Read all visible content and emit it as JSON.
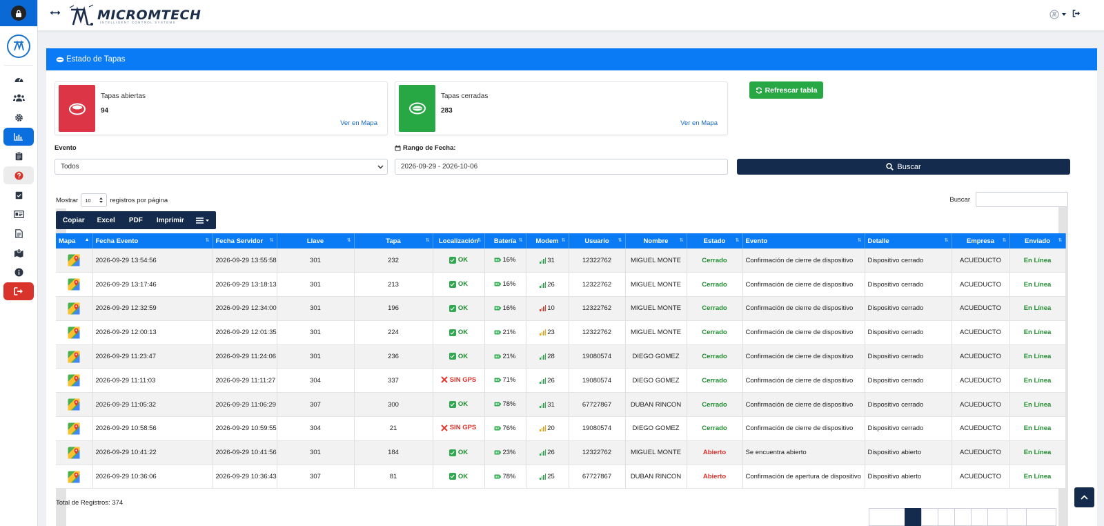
{
  "brand": {
    "name": "MICROMTECH",
    "tagline": "INTELLIGENT CONTROL SYSTEMS"
  },
  "page": {
    "title": "Estado de Tapas"
  },
  "summary": {
    "open": {
      "label": "Tapas abiertas",
      "count": "94",
      "link": "Ver en Mapa",
      "color": "#e03c3c"
    },
    "closed": {
      "label": "Tapas cerradas",
      "count": "283",
      "link": "Ver en Mapa",
      "color": "#2faa48"
    }
  },
  "buttons": {
    "refresh": "Refrescar tabla",
    "search": "Buscar"
  },
  "filters": {
    "event_label": "Evento",
    "event_value": "Todos",
    "date_label": "Rango de Fecha:",
    "date_value": "2026-09-29 - 2026-10-06"
  },
  "table_controls": {
    "show": "Mostrar",
    "page_size": "10",
    "per_page": "registros por página",
    "search_label": "Buscar",
    "export": [
      "Copiar",
      "Excel",
      "PDF",
      "Imprimir"
    ]
  },
  "columns": [
    "Mapa",
    "Fecha Evento",
    "Fecha Servidor",
    "Llave",
    "Tapa",
    "Localización",
    "Batería",
    "Modem",
    "Usuario",
    "Nombre",
    "Estado",
    "Evento",
    "Detalle",
    "Empresa",
    "Enviado"
  ],
  "rows": [
    {
      "fecha_evento": "2026-09-29 13:54:56",
      "fecha_servidor": "2026-09-29 13:55:58",
      "llave": "301",
      "tapa": "232",
      "loc": "OK",
      "bat": "16%",
      "modem": "31",
      "usuario": "12322762",
      "nombre": "MIGUEL MONTE",
      "estado": "Cerrado",
      "evento": "Confirmación de cierre de dispositivo",
      "detalle": "Dispositivo cerrado",
      "empresa": "ACUEDUCTO",
      "enviado": "En Línea"
    },
    {
      "fecha_evento": "2026-09-29 13:17:46",
      "fecha_servidor": "2026-09-29 13:18:13",
      "llave": "301",
      "tapa": "213",
      "loc": "OK",
      "bat": "16%",
      "modem": "26",
      "usuario": "12322762",
      "nombre": "MIGUEL MONTE",
      "estado": "Cerrado",
      "evento": "Confirmación de cierre de dispositivo",
      "detalle": "Dispositivo cerrado",
      "empresa": "ACUEDUCTO",
      "enviado": "En Línea"
    },
    {
      "fecha_evento": "2026-09-29 12:32:59",
      "fecha_servidor": "2026-09-29 12:34:00",
      "llave": "301",
      "tapa": "196",
      "loc": "OK",
      "bat": "16%",
      "modem": "10",
      "usuario": "12322762",
      "nombre": "MIGUEL MONTE",
      "estado": "Cerrado",
      "evento": "Confirmación de cierre de dispositivo",
      "detalle": "Dispositivo cerrado",
      "empresa": "ACUEDUCTO",
      "enviado": "En Línea"
    },
    {
      "fecha_evento": "2026-09-29 12:00:13",
      "fecha_servidor": "2026-09-29 12:01:35",
      "llave": "301",
      "tapa": "224",
      "loc": "OK",
      "bat": "21%",
      "modem": "23",
      "usuario": "12322762",
      "nombre": "MIGUEL MONTE",
      "estado": "Cerrado",
      "evento": "Confirmación de cierre de dispositivo",
      "detalle": "Dispositivo cerrado",
      "empresa": "ACUEDUCTO",
      "enviado": "En Línea"
    },
    {
      "fecha_evento": "2026-09-29 11:23:47",
      "fecha_servidor": "2026-09-29 11:24:06",
      "llave": "301",
      "tapa": "236",
      "loc": "OK",
      "bat": "21%",
      "modem": "28",
      "usuario": "19080574",
      "nombre": "DIEGO GOMEZ",
      "estado": "Cerrado",
      "evento": "Confirmación de cierre de dispositivo",
      "detalle": "Dispositivo cerrado",
      "empresa": "ACUEDUCTO",
      "enviado": "En Línea"
    },
    {
      "fecha_evento": "2026-09-29 11:11:03",
      "fecha_servidor": "2026-09-29 11:11:27",
      "llave": "304",
      "tapa": "337",
      "loc": "SIN GPS",
      "bat": "71%",
      "modem": "26",
      "usuario": "19080574",
      "nombre": "DIEGO GOMEZ",
      "estado": "Cerrado",
      "evento": "Confirmación de cierre de dispositivo",
      "detalle": "Dispositivo cerrado",
      "empresa": "ACUEDUCTO",
      "enviado": "En Línea"
    },
    {
      "fecha_evento": "2026-09-29 11:05:32",
      "fecha_servidor": "2026-09-29 11:06:29",
      "llave": "307",
      "tapa": "300",
      "loc": "OK",
      "bat": "78%",
      "modem": "31",
      "usuario": "67727867",
      "nombre": "DUBAN RINCON",
      "estado": "Cerrado",
      "evento": "Confirmación de cierre de dispositivo",
      "detalle": "Dispositivo cerrado",
      "empresa": "ACUEDUCTO",
      "enviado": "En Línea"
    },
    {
      "fecha_evento": "2026-09-29 10:58:56",
      "fecha_servidor": "2026-09-29 10:59:55",
      "llave": "304",
      "tapa": "21",
      "loc": "SIN GPS",
      "bat": "76%",
      "modem": "20",
      "usuario": "19080574",
      "nombre": "DIEGO GOMEZ",
      "estado": "Cerrado",
      "evento": "Confirmación de cierre de dispositivo",
      "detalle": "Dispositivo cerrado",
      "empresa": "ACUEDUCTO",
      "enviado": "En Línea"
    },
    {
      "fecha_evento": "2026-09-29 10:41:22",
      "fecha_servidor": "2026-09-29 10:41:56",
      "llave": "301",
      "tapa": "184",
      "loc": "OK",
      "bat": "23%",
      "modem": "26",
      "usuario": "12322762",
      "nombre": "MIGUEL MONTE",
      "estado": "Abierto",
      "evento": "Se encuentra abierto",
      "detalle": "Dispositivo abierto",
      "empresa": "ACUEDUCTO",
      "enviado": "En Línea"
    },
    {
      "fecha_evento": "2026-09-29 10:36:06",
      "fecha_servidor": "2026-09-29 10:36:43",
      "llave": "307",
      "tapa": "81",
      "loc": "OK",
      "bat": "78%",
      "modem": "25",
      "usuario": "67727867",
      "nombre": "DUBAN RINCON",
      "estado": "Abierto",
      "evento": "Confirmación de apertura de dispositivo",
      "detalle": "Dispositivo abierto",
      "empresa": "ACUEDUCTO",
      "enviado": "En Línea"
    }
  ],
  "footer": {
    "total": "Total de Registros: 374"
  }
}
